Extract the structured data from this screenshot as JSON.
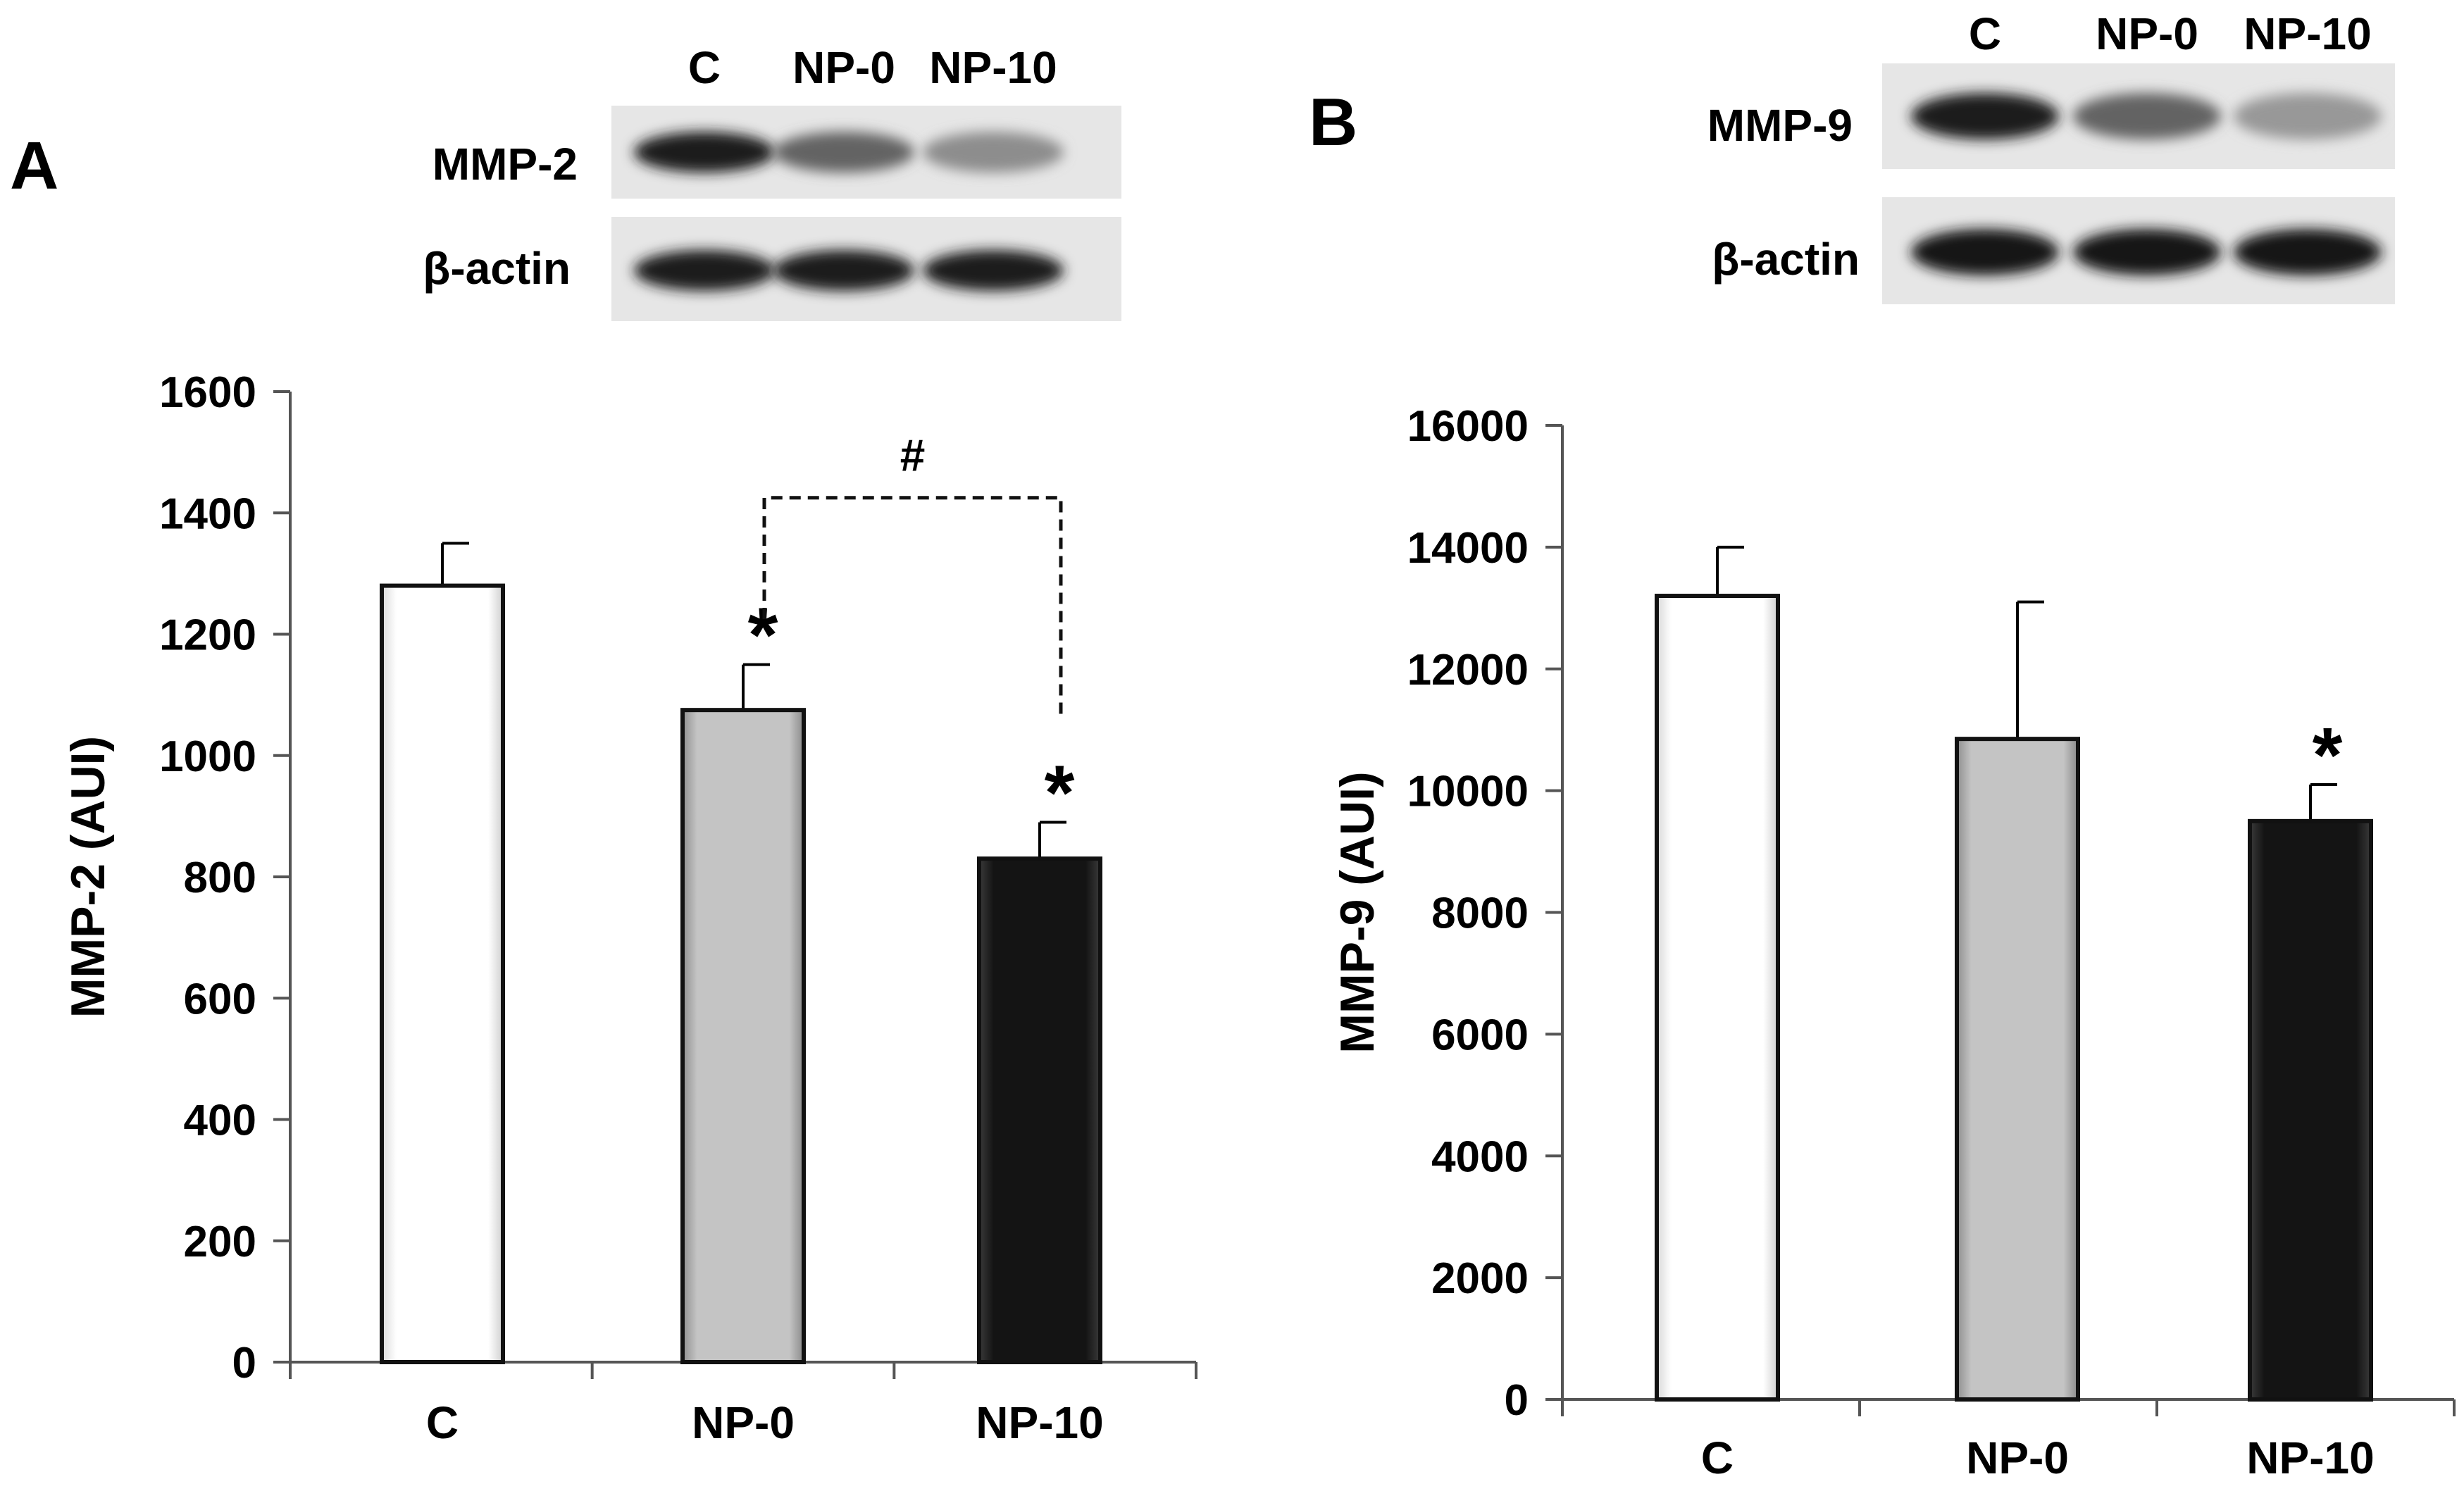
{
  "panels": [
    {
      "panel_label": "A",
      "blot": {
        "lanes": [
          "C",
          "NP-0",
          "NP-10"
        ],
        "rows": [
          {
            "label": "MMP-2",
            "intensity": [
              0.95,
              0.6,
              0.4
            ]
          },
          {
            "label": "β-actin",
            "intensity": [
              0.95,
              0.95,
              0.95
            ]
          }
        ]
      },
      "significance_bracket": {
        "label": "#",
        "from": "NP-0",
        "to": "NP-10"
      }
    },
    {
      "panel_label": "B",
      "blot": {
        "lanes": [
          "C",
          "NP-0",
          "NP-10"
        ],
        "rows": [
          {
            "label": "MMP-9",
            "intensity": [
              0.95,
              0.6,
              0.35
            ]
          },
          {
            "label": "β-actin",
            "intensity": [
              0.97,
              0.97,
              0.97
            ]
          }
        ]
      },
      "significance_bracket": null
    }
  ],
  "chart_data": [
    {
      "type": "bar",
      "title": "",
      "xlabel": "",
      "ylabel": "MMP-2 (AUI)",
      "categories": [
        "C",
        "NP-0",
        "NP-10"
      ],
      "values": [
        1280,
        1075,
        830
      ],
      "errors": [
        70,
        75,
        60
      ],
      "significance": [
        "",
        "*",
        "*"
      ],
      "bar_colors": [
        "#ffffff",
        "#bdbdbd",
        "#1a1a1a"
      ],
      "ylim": [
        0,
        1600
      ],
      "yticks": [
        0,
        200,
        400,
        600,
        800,
        1000,
        1200,
        1400,
        1600
      ],
      "grid": false,
      "legend": "none"
    },
    {
      "type": "bar",
      "title": "",
      "xlabel": "",
      "ylabel": "MMP-9 (AUI)",
      "categories": [
        "C",
        "NP-0",
        "NP-10"
      ],
      "values": [
        13200,
        10850,
        9500
      ],
      "errors": [
        800,
        2250,
        600
      ],
      "significance": [
        "",
        "",
        "*"
      ],
      "bar_colors": [
        "#ffffff",
        "#bdbdbd",
        "#1a1a1a"
      ],
      "ylim": [
        0,
        16000
      ],
      "yticks": [
        0,
        2000,
        4000,
        6000,
        8000,
        10000,
        12000,
        14000,
        16000
      ],
      "grid": false,
      "legend": "none"
    }
  ]
}
